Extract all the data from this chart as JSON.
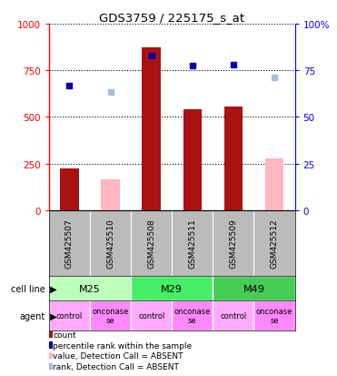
{
  "title": "GDS3759 / 225175_s_at",
  "samples": [
    "GSM425507",
    "GSM425510",
    "GSM425508",
    "GSM425511",
    "GSM425509",
    "GSM425512"
  ],
  "count_present": [
    225,
    0,
    875,
    540,
    555,
    0
  ],
  "count_absent": [
    0,
    165,
    0,
    0,
    0,
    275
  ],
  "rank_present": [
    670,
    0,
    830,
    775,
    780,
    0
  ],
  "rank_absent": [
    0,
    635,
    0,
    0,
    0,
    710
  ],
  "cell_line_groups": [
    {
      "label": "M25",
      "start": 0,
      "end": 2
    },
    {
      "label": "M29",
      "start": 2,
      "end": 4
    },
    {
      "label": "M49",
      "start": 4,
      "end": 6
    }
  ],
  "cell_line_colors": [
    "#BBFFBB",
    "#44EE66",
    "#44CC55"
  ],
  "agent_labels": [
    "control",
    "onconase\nse",
    "control",
    "onconase\nse",
    "control",
    "onconase\nse"
  ],
  "agent_colors": [
    "#FFAAFF",
    "#FF88FF",
    "#FFAAFF",
    "#FF88FF",
    "#FFAAFF",
    "#FF88FF"
  ],
  "ylim_left": [
    0,
    1000
  ],
  "ylim_right": [
    0,
    100
  ],
  "yticks_left": [
    0,
    250,
    500,
    750,
    1000
  ],
  "ytick_labels_left": [
    "0",
    "250",
    "500",
    "750",
    "1000"
  ],
  "yticks_right": [
    0,
    25,
    50,
    75,
    100
  ],
  "ytick_labels_right": [
    "0",
    "25",
    "50",
    "75",
    "100%"
  ],
  "color_count_present": "#AA1111",
  "color_count_absent": "#FFB6C1",
  "color_rank_present": "#0000AA",
  "color_rank_absent": "#AABBDD",
  "background_color": "#FFFFFF",
  "sample_label_bg": "#BBBBBB",
  "legend_items": [
    {
      "color": "#AA1111",
      "label": "count"
    },
    {
      "color": "#0000AA",
      "label": "percentile rank within the sample"
    },
    {
      "color": "#FFB6C1",
      "label": "value, Detection Call = ABSENT"
    },
    {
      "color": "#AABBDD",
      "label": "rank, Detection Call = ABSENT"
    }
  ]
}
